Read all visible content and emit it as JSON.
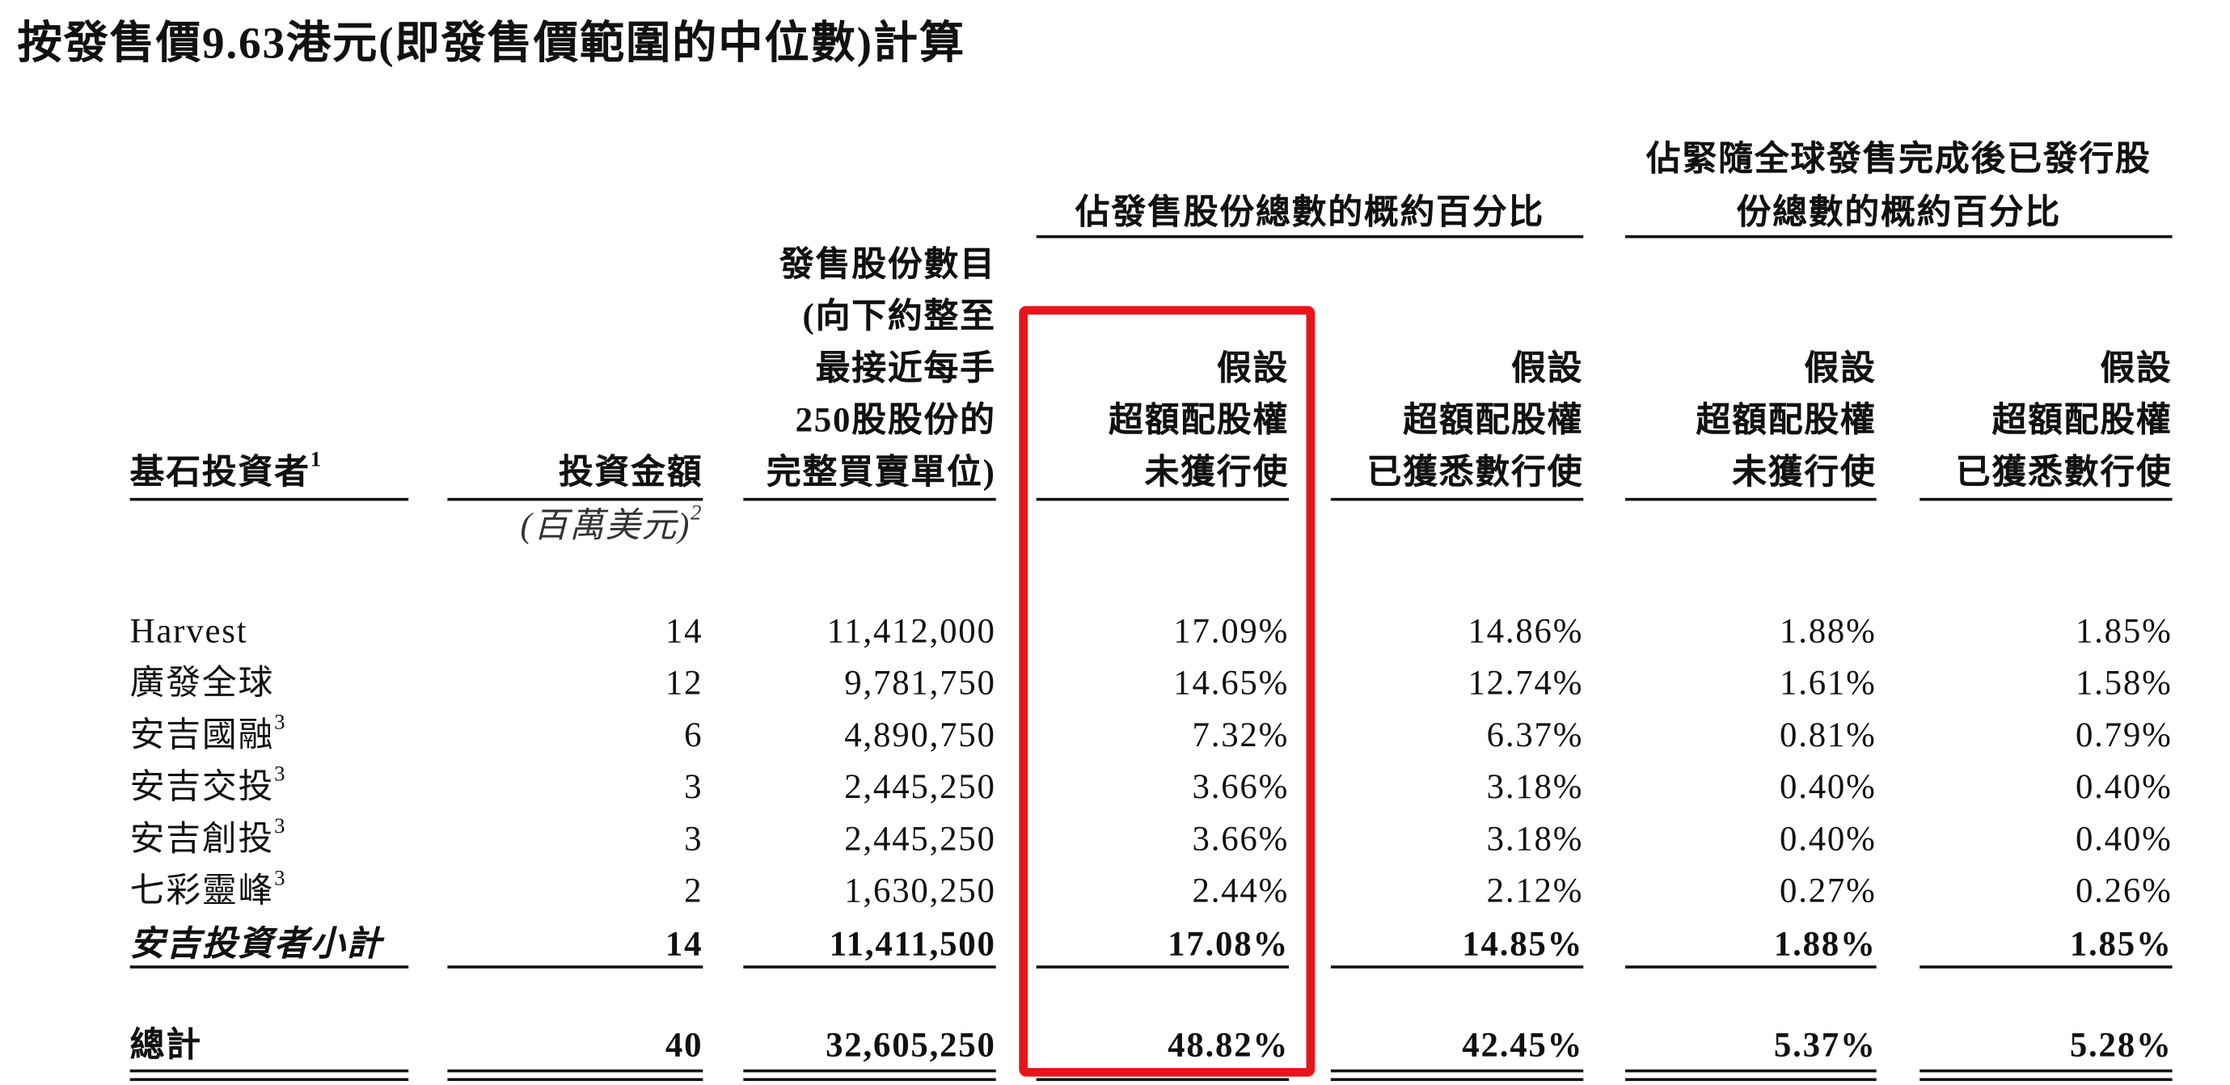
{
  "title": "按發售價9.63港元(即發售價範圍的中位數)計算",
  "group_headers": [
    {
      "lines": [
        "佔發售股份總數的概約百分比"
      ]
    },
    {
      "lines": [
        "佔緊隨全球發售完成後已發行股",
        "份總數的概約百分比"
      ]
    }
  ],
  "columns": [
    {
      "lines": [
        "基石投資者"
      ],
      "note": "1"
    },
    {
      "lines": [
        "投資金額"
      ],
      "unit": "(百萬美元)",
      "unit_note": "2"
    },
    {
      "lines": [
        "發售股份數目",
        "(向下約整至",
        "最接近每手",
        "250股股份的",
        "完整買賣單位)"
      ]
    },
    {
      "lines": [
        "假設",
        "超額配股權",
        "未獲行使"
      ]
    },
    {
      "lines": [
        "假設",
        "超額配股權",
        "已獲悉數行使"
      ]
    },
    {
      "lines": [
        "假設",
        "超額配股權",
        "未獲行使"
      ]
    },
    {
      "lines": [
        "假設",
        "超額配股權",
        "已獲悉數行使"
      ]
    }
  ],
  "rows": [
    {
      "name": "Harvest",
      "cells": [
        "14",
        "11,412,000",
        "17.09%",
        "14.86%",
        "1.88%",
        "1.85%"
      ]
    },
    {
      "name": "廣發全球",
      "cells": [
        "12",
        "9,781,750",
        "14.65%",
        "12.74%",
        "1.61%",
        "1.58%"
      ]
    },
    {
      "name": "安吉國融",
      "note": "3",
      "cells": [
        "6",
        "4,890,750",
        "7.32%",
        "6.37%",
        "0.81%",
        "0.79%"
      ]
    },
    {
      "name": "安吉交投",
      "note": "3",
      "cells": [
        "3",
        "2,445,250",
        "3.66%",
        "3.18%",
        "0.40%",
        "0.40%"
      ]
    },
    {
      "name": "安吉創投",
      "note": "3",
      "cells": [
        "3",
        "2,445,250",
        "3.66%",
        "3.18%",
        "0.40%",
        "0.40%"
      ]
    },
    {
      "name": "七彩靈峰",
      "note": "3",
      "cells": [
        "2",
        "1,630,250",
        "2.44%",
        "2.12%",
        "0.27%",
        "0.26%"
      ]
    }
  ],
  "subtotal": {
    "name": "安吉投資者小計",
    "cells": [
      "14",
      "11,411,500",
      "17.08%",
      "14.85%",
      "1.88%",
      "1.85%"
    ]
  },
  "total": {
    "name": "總計",
    "cells": [
      "40",
      "32,605,250",
      "48.82%",
      "42.45%",
      "5.37%",
      "5.28%"
    ]
  }
}
